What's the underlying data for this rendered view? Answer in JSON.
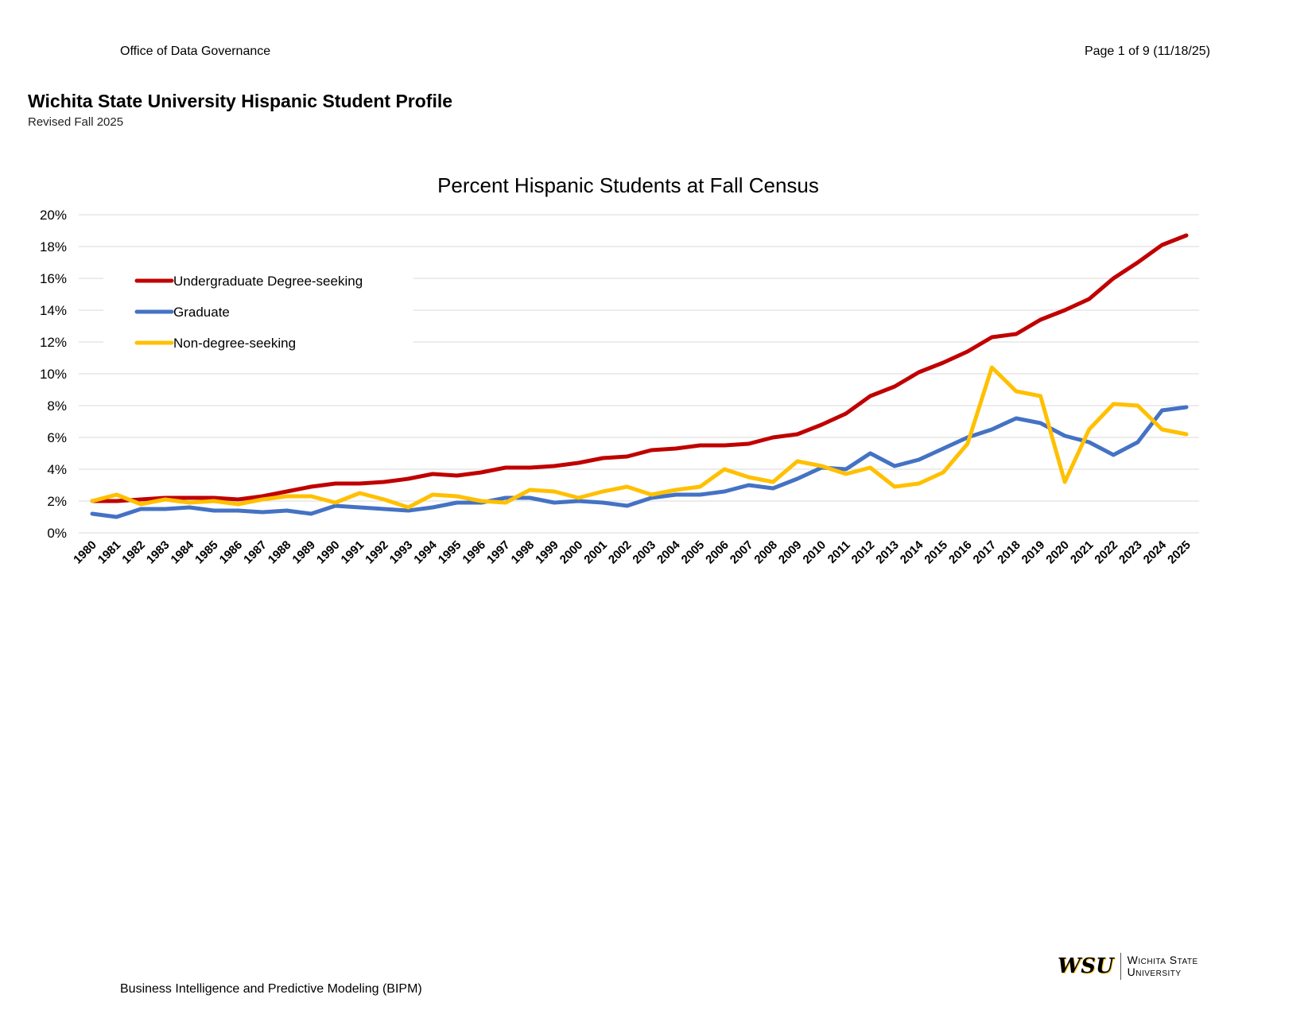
{
  "header": {
    "left": "Office of Data Governance",
    "right": "Page 1 of 9 (11/18/25)"
  },
  "document": {
    "title": "Wichita State University Hispanic Student Profile",
    "subtitle": "Revised Fall 2025"
  },
  "footer": {
    "left": "Business Intelligence and Predictive Modeling (BIPM)",
    "logo_mark": "WSU",
    "logo_line1": "Wichita State",
    "logo_line2": "University"
  },
  "chart_data": {
    "type": "line",
    "title": "Percent Hispanic Students at Fall Census",
    "xlabel": "",
    "ylabel": "",
    "ylim": [
      0,
      20
    ],
    "yticks": [
      0,
      2,
      4,
      6,
      8,
      10,
      12,
      14,
      16,
      18,
      20
    ],
    "ytick_labels": [
      "0%",
      "2%",
      "4%",
      "6%",
      "8%",
      "10%",
      "12%",
      "14%",
      "16%",
      "18%",
      "20%"
    ],
    "grid": true,
    "legend_position": "top-left",
    "categories": [
      "1980",
      "1981",
      "1982",
      "1983",
      "1984",
      "1985",
      "1986",
      "1987",
      "1988",
      "1989",
      "1990",
      "1991",
      "1992",
      "1993",
      "1994",
      "1995",
      "1996",
      "1997",
      "1998",
      "1999",
      "2000",
      "2001",
      "2002",
      "2003",
      "2004",
      "2005",
      "2006",
      "2007",
      "2008",
      "2009",
      "2010",
      "2011",
      "2012",
      "2013",
      "2014",
      "2015",
      "2016",
      "2017",
      "2018",
      "2019",
      "2020",
      "2021",
      "2022",
      "2023",
      "2024",
      "2025"
    ],
    "series": [
      {
        "name": "Undergraduate Degree-seeking",
        "color": "#c00000",
        "values": [
          2.0,
          2.0,
          2.1,
          2.2,
          2.2,
          2.2,
          2.1,
          2.3,
          2.6,
          2.9,
          3.1,
          3.1,
          3.2,
          3.4,
          3.7,
          3.6,
          3.8,
          4.1,
          4.1,
          4.2,
          4.4,
          4.7,
          4.8,
          5.2,
          5.3,
          5.5,
          5.5,
          5.6,
          6.0,
          6.2,
          6.8,
          7.5,
          8.6,
          9.2,
          10.1,
          10.7,
          11.4,
          12.3,
          12.5,
          13.4,
          14.0,
          14.7,
          16.0,
          17.0,
          18.1,
          18.7
        ]
      },
      {
        "name": "Graduate",
        "color": "#4472c4",
        "values": [
          1.2,
          1.0,
          1.5,
          1.5,
          1.6,
          1.4,
          1.4,
          1.3,
          1.4,
          1.2,
          1.7,
          1.6,
          1.5,
          1.4,
          1.6,
          1.9,
          1.9,
          2.2,
          2.2,
          1.9,
          2.0,
          1.9,
          1.7,
          2.2,
          2.4,
          2.4,
          2.6,
          3.0,
          2.8,
          3.4,
          4.1,
          4.0,
          5.0,
          4.2,
          4.6,
          5.3,
          6.0,
          6.5,
          7.2,
          6.9,
          6.1,
          5.7,
          4.9,
          5.7,
          7.7,
          7.9
        ]
      },
      {
        "name": "Non-degree-seeking",
        "color": "#ffc000",
        "values": [
          2.0,
          2.4,
          1.8,
          2.1,
          1.9,
          2.0,
          1.8,
          2.1,
          2.3,
          2.3,
          1.9,
          2.5,
          2.1,
          1.6,
          2.4,
          2.3,
          2.0,
          1.9,
          2.7,
          2.6,
          2.2,
          2.6,
          2.9,
          2.4,
          2.7,
          2.9,
          4.0,
          3.5,
          3.2,
          4.5,
          4.2,
          3.7,
          4.1,
          2.9,
          3.1,
          3.8,
          5.6,
          10.4,
          8.9,
          8.6,
          3.2,
          6.5,
          8.1,
          8.0,
          6.5,
          6.2
        ]
      }
    ]
  }
}
